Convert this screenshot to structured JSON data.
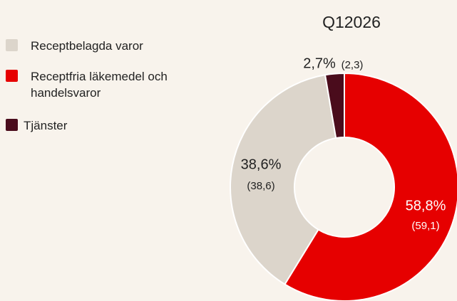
{
  "chart_data": {
    "type": "donut",
    "title": "Q12026",
    "categories": [
      "Receptfria läkemedel och handelsvaror",
      "Receptbelagda varor",
      "Tjänster"
    ],
    "values": [
      58.8,
      38.6,
      2.7
    ],
    "value_labels": [
      "58,8%",
      "38,6%",
      "2,7%"
    ],
    "previous_values": [
      59.1,
      38.6,
      2.3
    ],
    "previous_value_labels": [
      "(59,1)",
      "(38,6)",
      "(2,3)"
    ],
    "colors": [
      "#e60000",
      "#dcd5cb",
      "#4a0c1c"
    ],
    "legend_order": [
      1,
      0,
      2
    ],
    "legend": "left"
  }
}
